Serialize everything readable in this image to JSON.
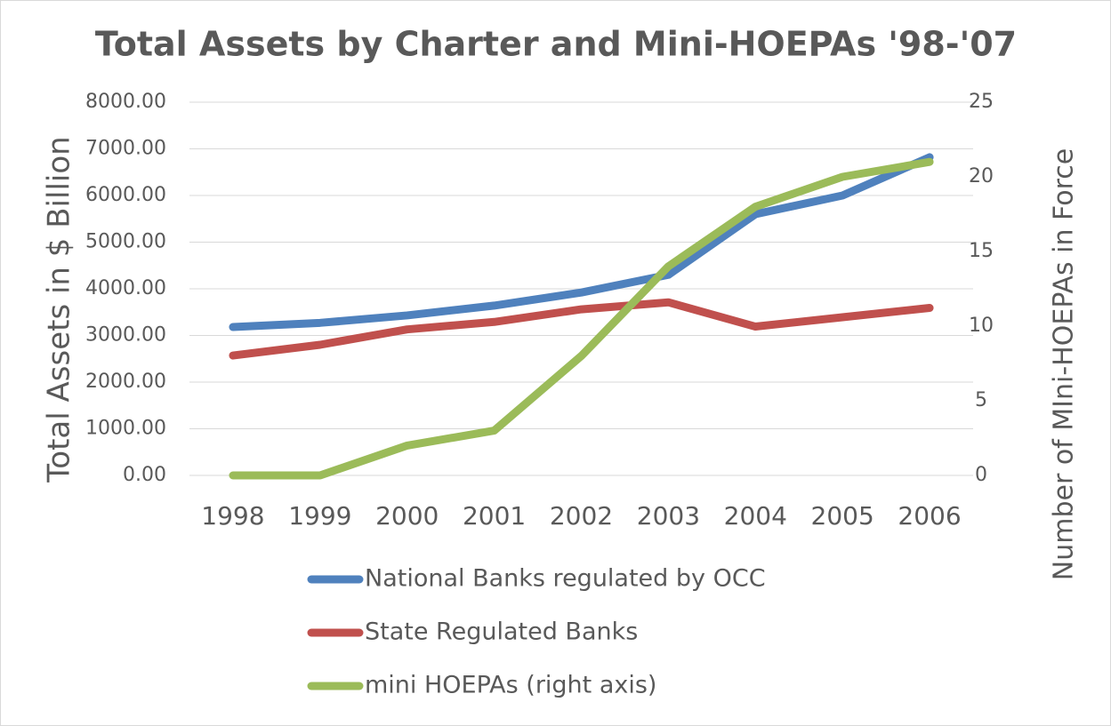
{
  "chart_data": {
    "type": "line",
    "title": "Total Assets by Charter and Mini-HOEPAs '98-'07",
    "y_label": "Total Assets in $ Billion",
    "y2_label": "Number of MIni-HOEPAs in Force",
    "categories": [
      "1998",
      "1999",
      "2000",
      "2001",
      "2002",
      "2003",
      "2004",
      "2005",
      "2006"
    ],
    "series": [
      {
        "name": "National Banks regulated by OCC",
        "color": "#4f81bd",
        "values": [
          3180,
          3270,
          3430,
          3640,
          3920,
          4300,
          5600,
          6000,
          6820
        ]
      },
      {
        "name": "State Regulated Banks",
        "color": "#c0504d",
        "values": [
          2570,
          2800,
          3130,
          3290,
          3560,
          3710,
          3190,
          3390,
          3590
        ]
      },
      {
        "name": "mini HOEPAs (right axis)",
        "color": "#9bbb59",
        "axis": "y2",
        "values": [
          0,
          0,
          2,
          3,
          8,
          14,
          18,
          20,
          21
        ]
      }
    ],
    "ylim": [
      0,
      8000
    ],
    "yticks": [
      {
        "value": 0,
        "label": "0.00"
      },
      {
        "value": 1000,
        "label": "1000.00"
      },
      {
        "value": 2000,
        "label": "2000.00"
      },
      {
        "value": 3000,
        "label": "3000.00"
      },
      {
        "value": 4000,
        "label": "4000.00"
      },
      {
        "value": 5000,
        "label": "5000.00"
      },
      {
        "value": 6000,
        "label": "6000.00"
      },
      {
        "value": 7000,
        "label": "7000.00"
      },
      {
        "value": 8000,
        "label": "8000.00"
      }
    ],
    "y2lim": [
      0,
      25
    ],
    "y2ticks": [
      0,
      5,
      10,
      15,
      20,
      25
    ],
    "grid": true,
    "legend": "bottom"
  }
}
